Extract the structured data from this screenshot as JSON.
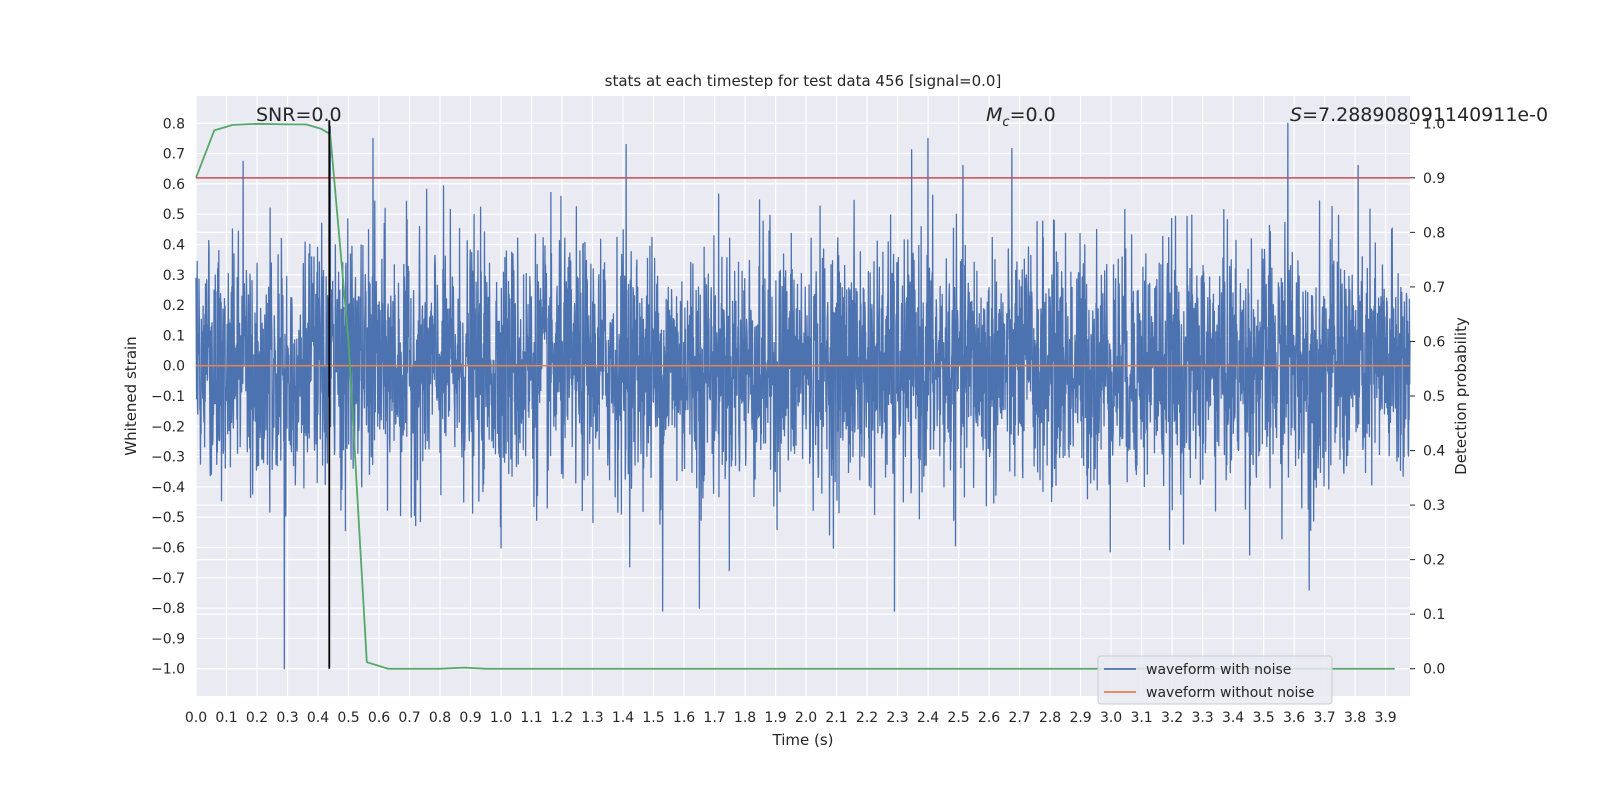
{
  "chart_data": {
    "type": "line",
    "title": "stats at each timestep for test data 456 [signal=0.0]",
    "xlabel": "Time (s)",
    "ylabel": "Whitened strain",
    "y2label": "Detection probability",
    "xlim": [
      0.0,
      3.98
    ],
    "ylim": [
      -1.09,
      0.89
    ],
    "y2lim": [
      -0.05,
      1.05
    ],
    "x_ticks": [
      "0.0",
      "0.1",
      "0.2",
      "0.3",
      "0.4",
      "0.5",
      "0.6",
      "0.7",
      "0.8",
      "0.9",
      "1.0",
      "1.1",
      "1.2",
      "1.3",
      "1.4",
      "1.5",
      "1.6",
      "1.7",
      "1.8",
      "1.9",
      "2.0",
      "2.1",
      "2.2",
      "2.3",
      "2.4",
      "2.5",
      "2.6",
      "2.7",
      "2.8",
      "2.9",
      "3.0",
      "3.1",
      "3.2",
      "3.3",
      "3.4",
      "3.5",
      "3.6",
      "3.7",
      "3.8",
      "3.9"
    ],
    "y_ticks": [
      "0.8",
      "0.7",
      "0.6",
      "0.5",
      "0.4",
      "0.3",
      "0.2",
      "0.1",
      "0.0",
      "−0.1",
      "−0.2",
      "−0.3",
      "−0.4",
      "−0.5",
      "−0.6",
      "−0.7",
      "−0.8",
      "−0.9",
      "−1.0"
    ],
    "y2_ticks": [
      "1.0",
      "0.9",
      "0.8",
      "0.7",
      "0.6",
      "0.5",
      "0.4",
      "0.3",
      "0.2",
      "0.1",
      "0.0"
    ],
    "grid": true,
    "legend_position": "lower-right",
    "series": [
      {
        "name": "waveform with noise",
        "color": "#4c72b0",
        "description_points": "dense noisy time series approx 4096 samples; amplitude roughly within -1.0 and 0.8",
        "noise_sigma": 0.2,
        "sample_count": 4096,
        "peaks": [
          [
            0.29,
            -1.0
          ],
          [
            0.44,
            0.79
          ],
          [
            0.58,
            0.75
          ],
          [
            1.41,
            0.73
          ],
          [
            1.53,
            -0.81
          ],
          [
            1.65,
            -0.8
          ],
          [
            2.29,
            -0.81
          ],
          [
            2.4,
            0.75
          ],
          [
            3.58,
            0.8
          ],
          [
            3.65,
            -0.74
          ]
        ]
      },
      {
        "name": "waveform without noise",
        "color": "#dd8452",
        "x": [
          0.0,
          3.98
        ],
        "y": [
          0.0,
          0.0
        ]
      },
      {
        "axis": "right",
        "color": "#55a868",
        "x": [
          0.0,
          0.06,
          0.12,
          0.2,
          0.3,
          0.36,
          0.41,
          0.44,
          0.5,
          0.56,
          0.63,
          0.7,
          0.8,
          0.88,
          0.95,
          1.0,
          3.93
        ],
        "y": [
          0.9,
          0.987,
          0.997,
          0.999,
          0.998,
          0.998,
          0.99,
          0.98,
          0.6,
          0.012,
          0.0,
          0.0,
          0.0,
          0.002,
          0.0,
          0.0,
          0.0
        ]
      }
    ],
    "hlines": [
      {
        "axis": "right",
        "y": 0.9,
        "color": "#c44e52"
      }
    ],
    "vlines": [
      {
        "x": 0.437,
        "y_from": -1.0,
        "y_to": 0.81,
        "color": "#000000"
      }
    ],
    "annotations": {
      "snr": "SNR=0.0",
      "mc_symbol": "M",
      "mc_subscript": "c",
      "mc_value": "=0.0",
      "s_symbol": "S",
      "s_value": "=7.288908091140911e-0"
    }
  }
}
